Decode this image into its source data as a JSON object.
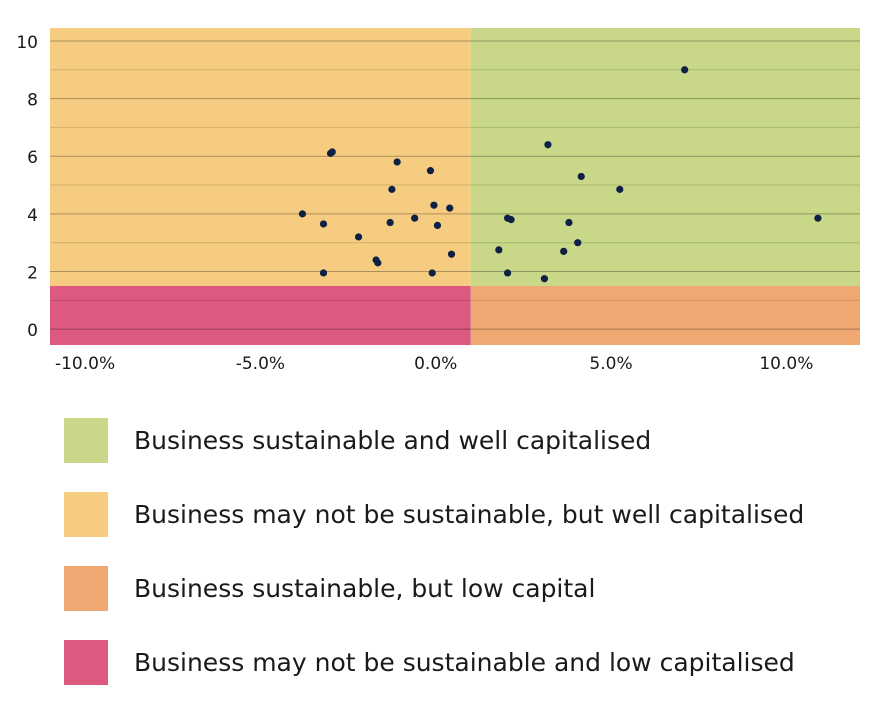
{
  "chart_data": {
    "type": "scatter",
    "title": "",
    "xlabel": "",
    "ylabel": "",
    "xlim": [
      -0.11,
      0.121
    ],
    "ylim": [
      -0.55,
      10.45
    ],
    "x_ticks": [
      -0.1,
      -0.05,
      0.0,
      0.05,
      0.1
    ],
    "x_tick_labels": [
      "-10.0%",
      "-5.0%",
      "0.0%",
      "5.0%",
      "10.0%"
    ],
    "y_ticks": [
      0,
      2,
      4,
      6,
      8,
      10
    ],
    "y_tick_labels": [
      "0",
      "2",
      "4",
      "6",
      "8",
      "10"
    ],
    "y_minor_gridlines": [
      1,
      3,
      5,
      7,
      9
    ],
    "grid": "horizontal",
    "thresholds": {
      "x": 0.01,
      "y": 1.5
    },
    "regions": [
      {
        "key": "top_right",
        "color": "#c8d888"
      },
      {
        "key": "top_left",
        "color": "#f6cd80"
      },
      {
        "key": "bottom_right",
        "color": "#f0a872"
      },
      {
        "key": "bottom_left",
        "color": "#dc5980"
      }
    ],
    "point_color": "#0f2045",
    "points": [
      {
        "x": -0.038,
        "y": 4.0
      },
      {
        "x": -0.032,
        "y": 3.65
      },
      {
        "x": -0.032,
        "y": 1.95
      },
      {
        "x": -0.03,
        "y": 6.1
      },
      {
        "x": -0.0295,
        "y": 6.15
      },
      {
        "x": -0.022,
        "y": 3.2
      },
      {
        "x": -0.017,
        "y": 2.4
      },
      {
        "x": -0.0165,
        "y": 2.3
      },
      {
        "x": -0.013,
        "y": 3.7
      },
      {
        "x": -0.0125,
        "y": 4.85
      },
      {
        "x": -0.011,
        "y": 5.8
      },
      {
        "x": -0.006,
        "y": 3.85
      },
      {
        "x": -0.0015,
        "y": 5.5
      },
      {
        "x": -0.001,
        "y": 1.95
      },
      {
        "x": -0.0005,
        "y": 4.3
      },
      {
        "x": 0.0005,
        "y": 3.6
      },
      {
        "x": 0.004,
        "y": 4.2
      },
      {
        "x": 0.0045,
        "y": 2.6
      },
      {
        "x": 0.018,
        "y": 2.75
      },
      {
        "x": 0.0205,
        "y": 3.85
      },
      {
        "x": 0.0215,
        "y": 3.8
      },
      {
        "x": 0.0205,
        "y": 1.95
      },
      {
        "x": 0.031,
        "y": 1.75
      },
      {
        "x": 0.032,
        "y": 6.4
      },
      {
        "x": 0.0365,
        "y": 2.7
      },
      {
        "x": 0.038,
        "y": 3.7
      },
      {
        "x": 0.0405,
        "y": 3.0
      },
      {
        "x": 0.0415,
        "y": 5.3
      },
      {
        "x": 0.0525,
        "y": 4.85
      },
      {
        "x": 0.071,
        "y": 9.0
      },
      {
        "x": 0.109,
        "y": 3.85
      }
    ]
  },
  "legend": {
    "items": [
      {
        "label": "Business sustainable and well capitalised",
        "color": "#c8d888"
      },
      {
        "label": "Business may not be sustainable, but well capitalised",
        "color": "#f6cd80"
      },
      {
        "label": "Business sustainable, but low capital",
        "color": "#f0a872"
      },
      {
        "label": "Business may not be sustainable and low capitalised",
        "color": "#dc5980"
      }
    ]
  }
}
